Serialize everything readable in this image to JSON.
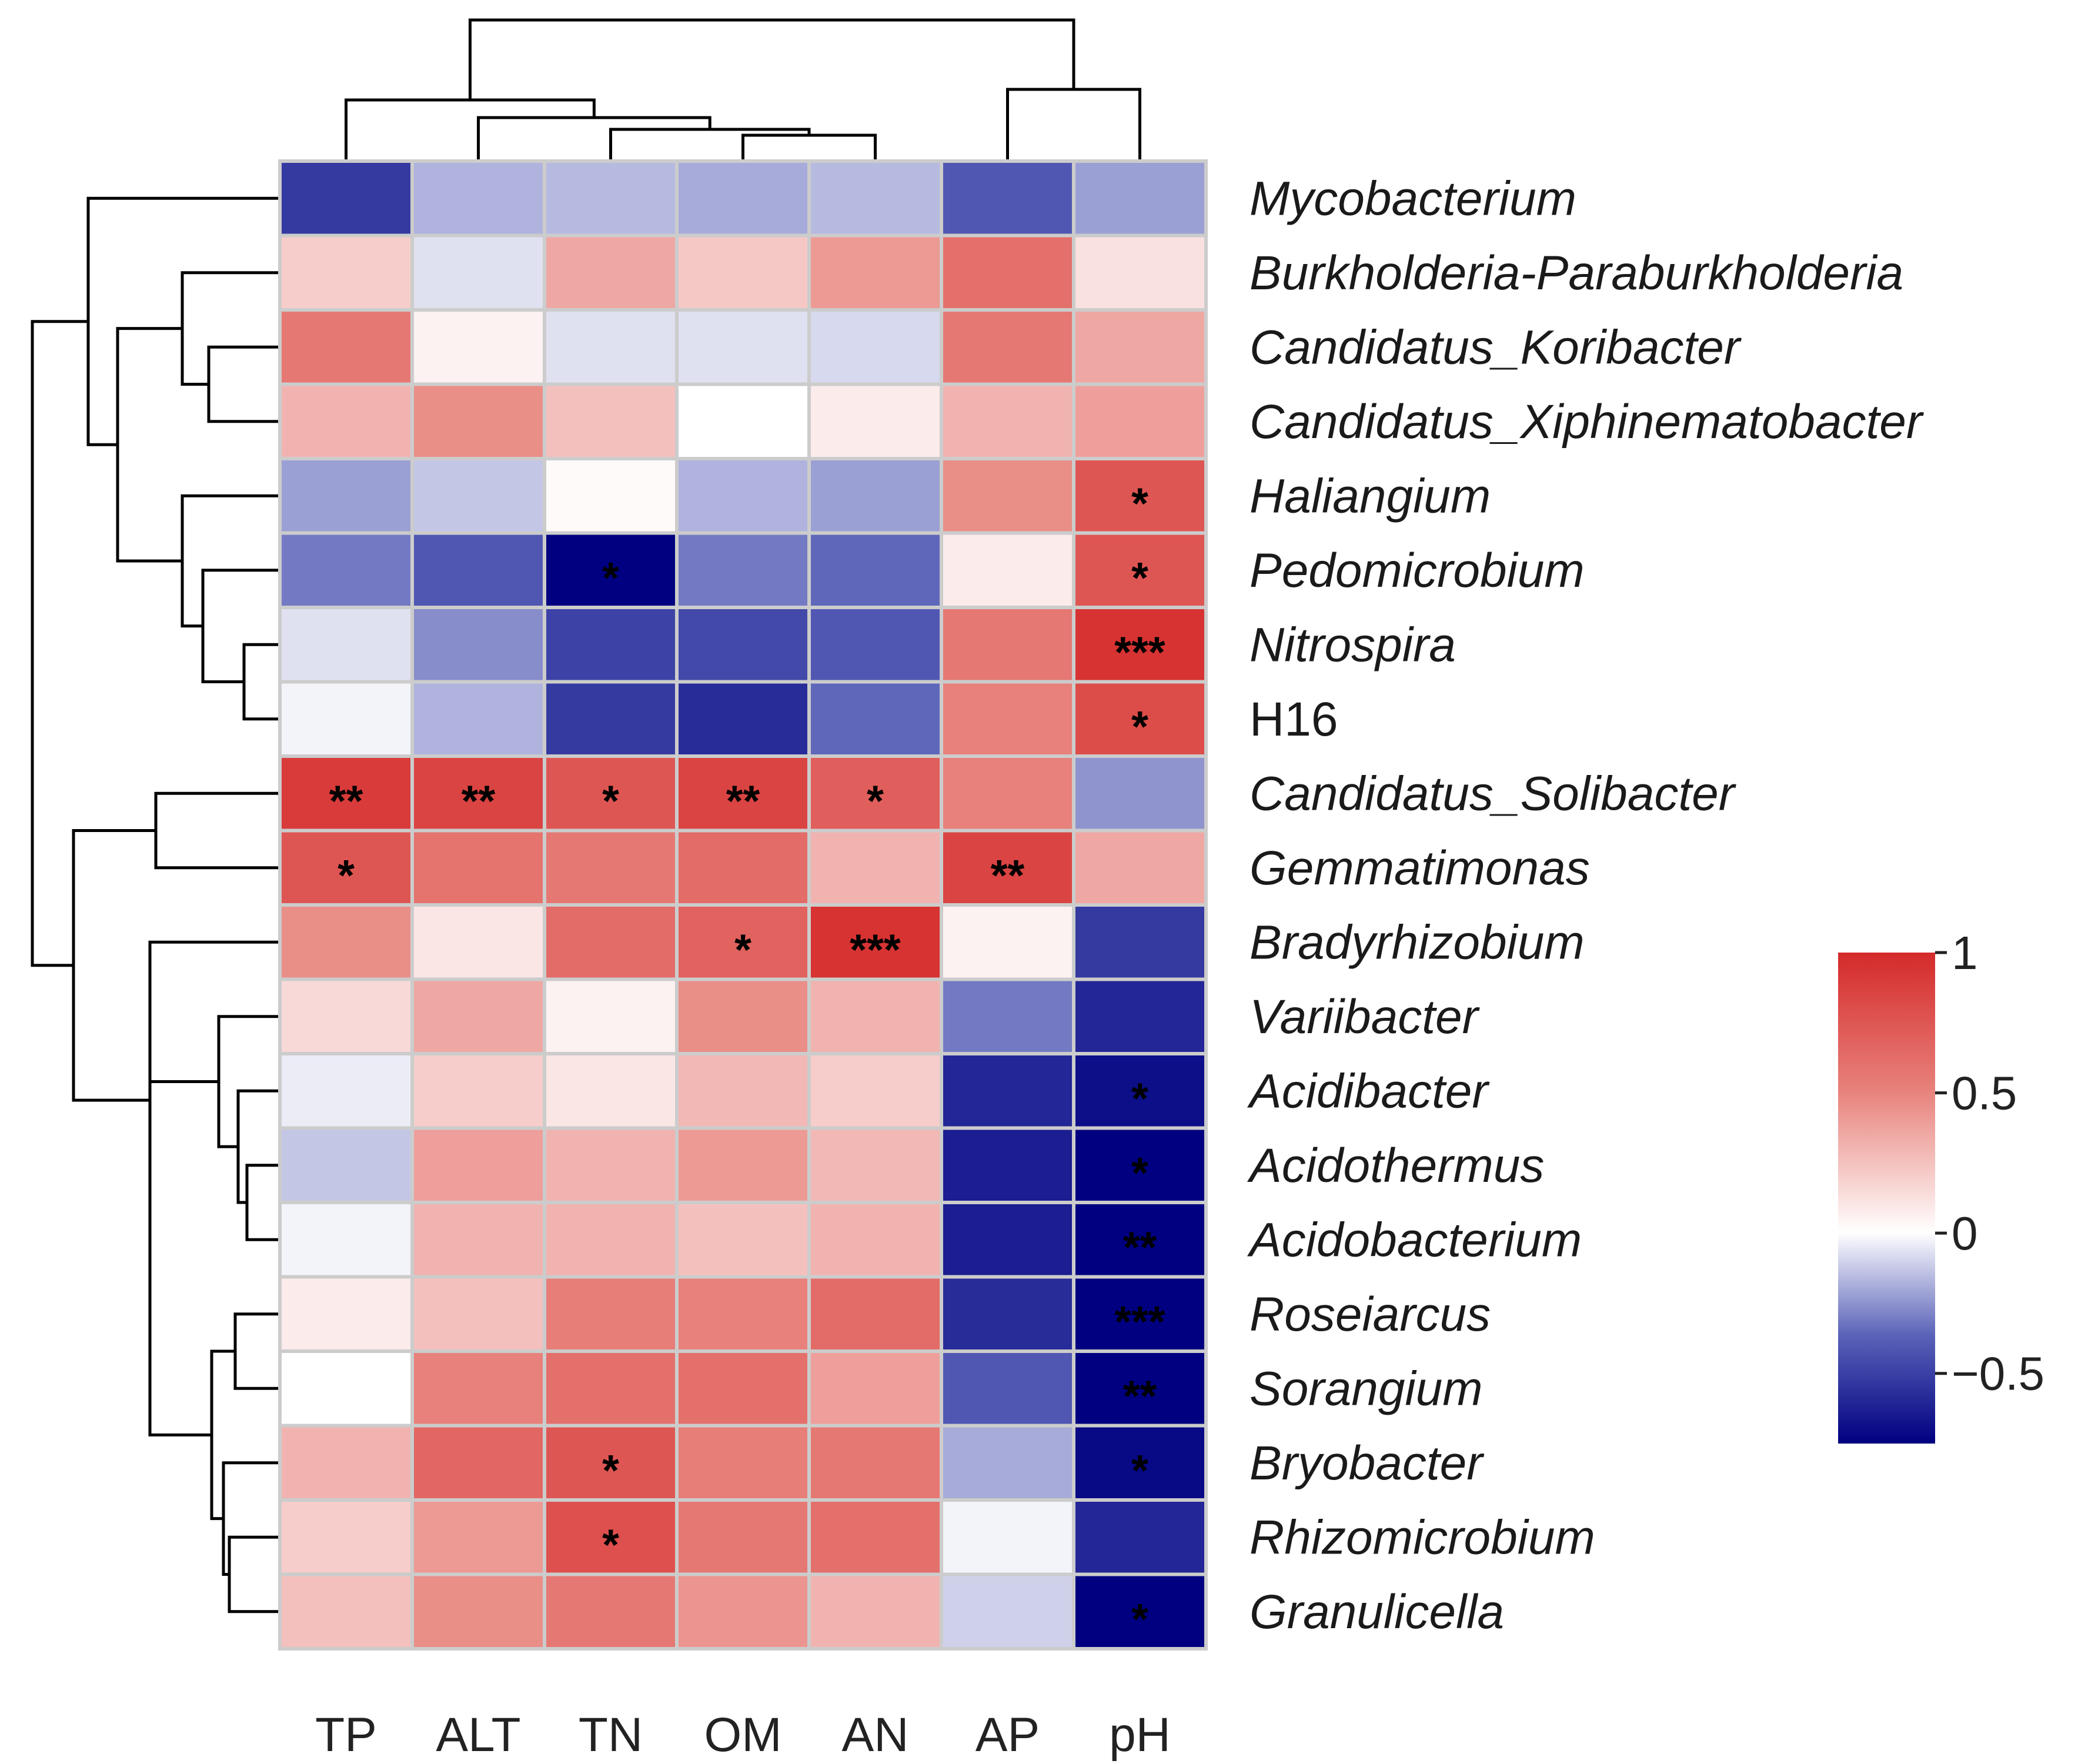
{
  "chart_data": {
    "type": "heatmap",
    "title": "",
    "columns": [
      "TP",
      "ALT",
      "TN",
      "OM",
      "AN",
      "AP",
      "pH"
    ],
    "rows": [
      {
        "name": "Mycobacterium",
        "italic": true,
        "values": [
          -0.55,
          -0.2,
          -0.18,
          -0.22,
          -0.18,
          -0.45,
          -0.25
        ],
        "sig": [
          "",
          "",
          "",
          "",
          "",
          "",
          ""
        ]
      },
      {
        "name": "Burkholderia-Paraburkholderia",
        "italic": true,
        "values": [
          0.2,
          -0.08,
          0.35,
          0.22,
          0.4,
          0.6,
          0.12
        ],
        "sig": [
          "",
          "",
          "",
          "",
          "",
          "",
          ""
        ]
      },
      {
        "name": "Candidatus_Koribacter",
        "italic": true,
        "values": [
          0.55,
          0.05,
          -0.08,
          -0.08,
          -0.1,
          0.55,
          0.35
        ],
        "sig": [
          "",
          "",
          "",
          "",
          "",
          "",
          ""
        ]
      },
      {
        "name": "Candidatus_Xiphinematobacter",
        "italic": true,
        "values": [
          0.3,
          0.45,
          0.25,
          0.0,
          0.08,
          0.3,
          0.38
        ],
        "sig": [
          "",
          "",
          "",
          "",
          "",
          "",
          ""
        ]
      },
      {
        "name": "Haliangium",
        "italic": true,
        "values": [
          -0.25,
          -0.15,
          0.02,
          -0.2,
          -0.25,
          0.45,
          0.75
        ],
        "sig": [
          "",
          "",
          "",
          "",
          "",
          "",
          "*"
        ]
      },
      {
        "name": "Pedomicrobium",
        "italic": true,
        "values": [
          -0.35,
          -0.45,
          -0.75,
          -0.35,
          -0.4,
          0.08,
          0.75
        ],
        "sig": [
          "",
          "",
          "*",
          "",
          "",
          "",
          "*"
        ]
      },
      {
        "name": "Nitrospira",
        "italic": true,
        "values": [
          -0.08,
          -0.3,
          -0.52,
          -0.5,
          -0.45,
          0.55,
          0.95
        ],
        "sig": [
          "",
          "",
          "",
          "",
          "",
          "",
          "***"
        ]
      },
      {
        "name": "H16",
        "italic": false,
        "values": [
          -0.03,
          -0.2,
          -0.55,
          -0.6,
          -0.4,
          0.5,
          0.8
        ],
        "sig": [
          "",
          "",
          "",
          "",
          "",
          "",
          "*"
        ]
      },
      {
        "name": "Candidatus_Solibacter",
        "italic": true,
        "values": [
          0.9,
          0.85,
          0.75,
          0.85,
          0.7,
          0.5,
          -0.28
        ],
        "sig": [
          "**",
          "**",
          "*",
          "**",
          "*",
          "",
          ""
        ]
      },
      {
        "name": "Gemmatimonas",
        "italic": true,
        "values": [
          0.75,
          0.58,
          0.55,
          0.62,
          0.3,
          0.85,
          0.35
        ],
        "sig": [
          "*",
          "",
          "",
          "",
          "",
          "**",
          ""
        ]
      },
      {
        "name": "Bradyrhizobium",
        "italic": true,
        "values": [
          0.45,
          0.1,
          0.62,
          0.68,
          0.95,
          0.05,
          -0.55
        ],
        "sig": [
          "",
          "",
          "",
          "*",
          "***",
          "",
          ""
        ]
      },
      {
        "name": "Variibacter",
        "italic": true,
        "values": [
          0.15,
          0.35,
          0.05,
          0.45,
          0.3,
          -0.35,
          -0.62
        ],
        "sig": [
          "",
          "",
          "",
          "",
          "",
          "",
          ""
        ]
      },
      {
        "name": "Acidibacter",
        "italic": true,
        "values": [
          -0.05,
          0.2,
          0.1,
          0.28,
          0.2,
          -0.62,
          -0.7
        ],
        "sig": [
          "",
          "",
          "",
          "",
          "",
          "",
          "*"
        ]
      },
      {
        "name": "Acidothermus",
        "italic": true,
        "values": [
          -0.15,
          0.38,
          0.3,
          0.4,
          0.28,
          -0.65,
          -0.78
        ],
        "sig": [
          "",
          "",
          "",
          "",
          "",
          "",
          "*"
        ]
      },
      {
        "name": "Acidobacterium",
        "italic": true,
        "values": [
          -0.03,
          0.3,
          0.3,
          0.25,
          0.3,
          -0.65,
          -0.85
        ],
        "sig": [
          "",
          "",
          "",
          "",
          "",
          "",
          "**"
        ]
      },
      {
        "name": "Roseiarcus",
        "italic": true,
        "values": [
          0.08,
          0.25,
          0.52,
          0.5,
          0.62,
          -0.6,
          -0.95
        ],
        "sig": [
          "",
          "",
          "",
          "",
          "",
          "",
          "***"
        ]
      },
      {
        "name": "Sorangium",
        "italic": true,
        "values": [
          0.0,
          0.5,
          0.6,
          0.6,
          0.38,
          -0.45,
          -0.85
        ],
        "sig": [
          "",
          "",
          "",
          "",
          "",
          "",
          "**"
        ]
      },
      {
        "name": "Bryobacter",
        "italic": true,
        "values": [
          0.3,
          0.65,
          0.75,
          0.52,
          0.55,
          -0.22,
          -0.72
        ],
        "sig": [
          "",
          "",
          "*",
          "",
          "",
          "",
          "*"
        ]
      },
      {
        "name": "Rhizomicrobium",
        "italic": true,
        "values": [
          0.2,
          0.4,
          0.78,
          0.55,
          0.6,
          -0.03,
          -0.62
        ],
        "sig": [
          "",
          "",
          "*",
          "",
          "",
          "",
          ""
        ]
      },
      {
        "name": "Granulicella",
        "italic": true,
        "values": [
          0.25,
          0.45,
          0.55,
          0.42,
          0.3,
          -0.12,
          -0.75
        ],
        "sig": [
          "",
          "",
          "",
          "",
          "",
          "",
          "*"
        ]
      }
    ],
    "colorbar": {
      "min": -0.75,
      "max": 1,
      "ticks": [
        {
          "value": 1,
          "label": "1"
        },
        {
          "value": 0.5,
          "label": "0.5"
        },
        {
          "value": 0,
          "label": "0"
        },
        {
          "value": -0.5,
          "label": "−0.5"
        }
      ],
      "colors": {
        "low": "#000080",
        "mid_low": "#5a62b8",
        "mid": "#ffffff",
        "mid_high": "#e8817b",
        "high": "#d42a2a"
      }
    },
    "cell_border_color": "#cccccc",
    "dendrogram": {
      "columns": [
        [
          [
            "TP"
          ],
          [
            "ALT"
          ],
          [
            "TN"
          ],
          [
            "OM"
          ],
          [
            "AN"
          ]
        ],
        [
          "AP",
          "pH"
        ]
      ],
      "rows": "clustered"
    }
  }
}
